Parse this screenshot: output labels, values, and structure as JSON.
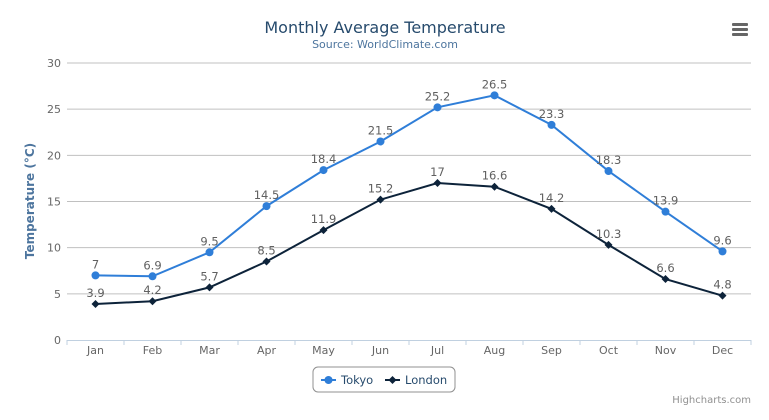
{
  "chart_data": {
    "type": "line",
    "title": "Monthly Average Temperature",
    "subtitle": "Source: WorldClimate.com",
    "xlabel": "",
    "ylabel": "Temperature (°C)",
    "ylim": [
      0,
      30
    ],
    "yticks": [
      0,
      5,
      10,
      15,
      20,
      25,
      30
    ],
    "grid": true,
    "legend_placement": "bottom-center",
    "categories": [
      "Jan",
      "Feb",
      "Mar",
      "Apr",
      "May",
      "Jun",
      "Jul",
      "Aug",
      "Sep",
      "Oct",
      "Nov",
      "Dec"
    ],
    "series": [
      {
        "name": "Tokyo",
        "color": "#2f7ed8",
        "marker": "circle",
        "values": [
          7.0,
          6.9,
          9.5,
          14.5,
          18.4,
          21.5,
          25.2,
          26.5,
          23.3,
          18.3,
          13.9,
          9.6
        ]
      },
      {
        "name": "London",
        "color": "#0d233a",
        "marker": "diamond",
        "values": [
          3.9,
          4.2,
          5.7,
          8.5,
          11.9,
          15.2,
          17.0,
          16.6,
          14.2,
          10.3,
          6.6,
          4.8
        ]
      }
    ],
    "credits": "Highcharts.com"
  },
  "menu_icon": "hamburger-menu-icon"
}
